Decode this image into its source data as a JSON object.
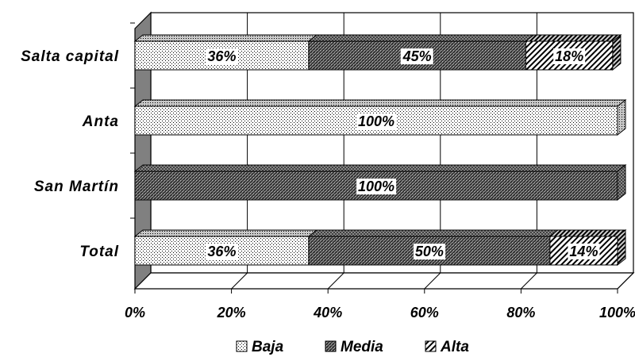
{
  "chart_data": {
    "type": "bar",
    "orientation": "horizontal",
    "stacked": true,
    "percent_stacked": true,
    "three_d": true,
    "categories": [
      "Salta capital",
      "Anta",
      "San Martín",
      "Total"
    ],
    "series": [
      {
        "name": "Baja",
        "values": [
          36,
          100,
          0,
          36
        ],
        "labels": [
          "36%",
          "100%",
          "",
          "36%"
        ],
        "pattern": "dots"
      },
      {
        "name": "Media",
        "values": [
          45,
          0,
          100,
          50
        ],
        "labels": [
          "45%",
          "",
          "100%",
          "50%"
        ],
        "pattern": "crosshatch"
      },
      {
        "name": "Alta",
        "values": [
          18,
          0,
          0,
          14
        ],
        "labels": [
          "18%",
          "",
          "",
          "14%"
        ],
        "pattern": "diagonal"
      }
    ],
    "xaxis": {
      "ticks": [
        0,
        20,
        40,
        60,
        80,
        100
      ],
      "tick_labels": [
        "0%",
        "20%",
        "40%",
        "60%",
        "80%",
        "100%"
      ],
      "xlim": [
        0,
        100
      ]
    },
    "grid": "vertical",
    "legend": {
      "position": "bottom"
    },
    "colors": {
      "wall_side": "#808080",
      "gridline": "#000000",
      "bar_stroke": "#000000"
    }
  }
}
